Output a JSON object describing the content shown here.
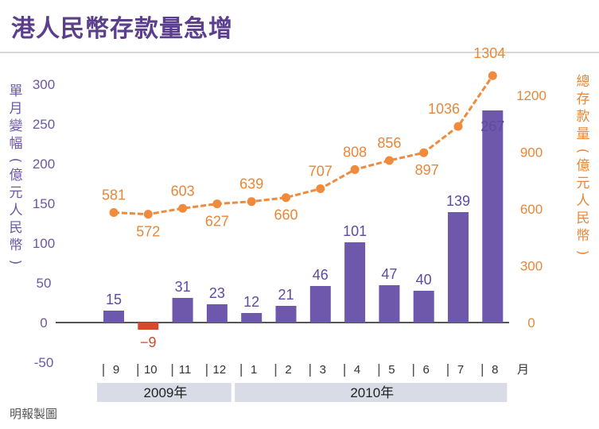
{
  "title": "港人民幣存款量急增",
  "source": "明報製圖",
  "colors": {
    "bar": "#6e58ac",
    "bar_negative": "#d9482b",
    "line": "#f08a3c",
    "title": "#5b3f8c",
    "year_band": "#d9dce6"
  },
  "chart_data": {
    "type": "bar+line",
    "categories": [
      "9",
      "10",
      "11",
      "12",
      "1",
      "2",
      "3",
      "4",
      "5",
      "6",
      "7",
      "8"
    ],
    "month_unit": "月",
    "years": [
      {
        "label": "2009年",
        "months": [
          "9",
          "10",
          "11",
          "12"
        ]
      },
      {
        "label": "2010年",
        "months": [
          "1",
          "2",
          "3",
          "4",
          "5",
          "6",
          "7",
          "8"
        ]
      }
    ],
    "series": [
      {
        "name": "單月變幅(億元人民幣)",
        "type": "bar",
        "axis": "left",
        "values": [
          15,
          -9,
          31,
          23,
          12,
          21,
          46,
          101,
          47,
          40,
          139,
          267
        ]
      },
      {
        "name": "總存款量(億元人民幣)",
        "type": "line",
        "axis": "right",
        "values": [
          581,
          572,
          603,
          627,
          639,
          660,
          707,
          808,
          856,
          897,
          1036,
          1304
        ]
      }
    ],
    "left_axis": {
      "label": "單月變幅(億元人民幣)",
      "ticks": [
        "300",
        "250",
        "200",
        "150",
        "100",
        "50",
        "0",
        "-50"
      ],
      "tick_values": [
        300,
        250,
        200,
        150,
        100,
        50,
        0,
        -50
      ],
      "range": [
        -50,
        300
      ]
    },
    "right_axis": {
      "label": "總存款量(億元人民幣)",
      "ticks": [
        "1200",
        "900",
        "600",
        "300",
        "0"
      ],
      "tick_values": [
        1200,
        900,
        600,
        300,
        0
      ],
      "range": [
        0,
        1300
      ]
    }
  }
}
